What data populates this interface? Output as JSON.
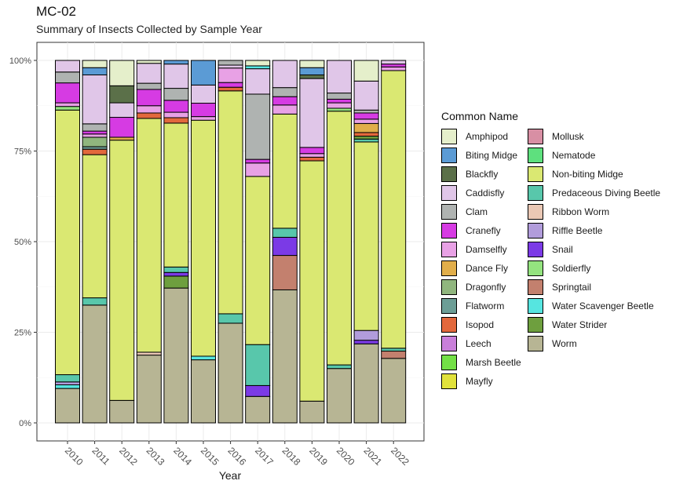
{
  "header": {
    "title": "MC-02",
    "subtitle": "Summary of Insects Collected by Sample Year"
  },
  "chart_data": {
    "type": "bar",
    "stacked": true,
    "normalized": true,
    "title": "MC-02",
    "subtitle": "Summary of Insects Collected by Sample Year",
    "xlabel": "Year",
    "ylabel": "",
    "ylim": [
      0,
      1
    ],
    "y_ticks": [
      "0%",
      "25%",
      "50%",
      "75%",
      "100%"
    ],
    "categories": [
      "2010",
      "2011",
      "2012",
      "2013",
      "2014",
      "2015",
      "2016",
      "2017",
      "2018",
      "2019",
      "2020",
      "2021",
      "2022"
    ],
    "legend_title": "Common Name",
    "legend_position": "right",
    "species": [
      {
        "name": "Amphipod",
        "color": "#E5EFCB"
      },
      {
        "name": "Biting Midge",
        "color": "#5B9BD5"
      },
      {
        "name": "Blackfly",
        "color": "#5B7049"
      },
      {
        "name": "Caddisfly",
        "color": "#E0C6E8"
      },
      {
        "name": "Clam",
        "color": "#AFB3B1"
      },
      {
        "name": "Cranefly",
        "color": "#D63BE3"
      },
      {
        "name": "Damselfly",
        "color": "#E8A1E5"
      },
      {
        "name": "Dance Fly",
        "color": "#E1AE4A"
      },
      {
        "name": "Dragonfly",
        "color": "#90B67E"
      },
      {
        "name": "Flatworm",
        "color": "#6C9E96"
      },
      {
        "name": "Isopod",
        "color": "#E2683C"
      },
      {
        "name": "Leech",
        "color": "#C97FDA"
      },
      {
        "name": "Marsh Beetle",
        "color": "#73E046"
      },
      {
        "name": "Mayfly",
        "color": "#E1E23B"
      },
      {
        "name": "Mollusk",
        "color": "#D88FA4"
      },
      {
        "name": "Nematode",
        "color": "#5EE07E"
      },
      {
        "name": "Non-biting Midge",
        "color": "#DAE872"
      },
      {
        "name": "Predaceous Diving Beetle",
        "color": "#58C7AB"
      },
      {
        "name": "Ribbon Worm",
        "color": "#EAC8B5"
      },
      {
        "name": "Riffle Beetle",
        "color": "#B19CDB"
      },
      {
        "name": "Snail",
        "color": "#7B3AE6"
      },
      {
        "name": "Soldierfly",
        "color": "#94E37F"
      },
      {
        "name": "Springtail",
        "color": "#C3806E"
      },
      {
        "name": "Water Scavenger Beetle",
        "color": "#56E5E0"
      },
      {
        "name": "Water Strider",
        "color": "#6E9F3E"
      },
      {
        "name": "Worm",
        "color": "#B7B594"
      }
    ],
    "data": {
      "2010": [
        [
          "Worm",
          0.095
        ],
        [
          "Water Scavenger Beetle",
          0.01
        ],
        [
          "Riffle Beetle",
          0.008
        ],
        [
          "Predaceous Diving Beetle",
          0.02
        ],
        [
          "Non-biting Midge",
          0.73
        ],
        [
          "Soldierfly",
          0.01
        ],
        [
          "Damselfly",
          0.01
        ],
        [
          "Cranefly",
          0.055
        ],
        [
          "Clam",
          0.03
        ],
        [
          "Caddisfly",
          0.032
        ]
      ],
      "2011": [
        [
          "Worm",
          0.325
        ],
        [
          "Predaceous Diving Beetle",
          0.02
        ],
        [
          "Non-biting Midge",
          0.395
        ],
        [
          "Isopod",
          0.015
        ],
        [
          "Flatworm",
          0.007
        ],
        [
          "Dragonfly",
          0.026
        ],
        [
          "Damselfly",
          0.009
        ],
        [
          "Cranefly",
          0.008
        ],
        [
          "Clam",
          0.02
        ],
        [
          "Caddisfly",
          0.135
        ],
        [
          "Biting Midge",
          0.02
        ],
        [
          "Amphipod",
          0.02
        ]
      ],
      "2012": [
        [
          "Worm",
          0.062
        ],
        [
          "Non-biting Midge",
          0.718
        ],
        [
          "Dance Fly",
          0.008
        ],
        [
          "Cranefly",
          0.055
        ],
        [
          "Caddisfly",
          0.04
        ],
        [
          "Blackfly",
          0.047
        ],
        [
          "Amphipod",
          0.07
        ]
      ],
      "2013": [
        [
          "Worm",
          0.187
        ],
        [
          "Ribbon Worm",
          0.008
        ],
        [
          "Non-biting Midge",
          0.645
        ],
        [
          "Isopod",
          0.015
        ],
        [
          "Damselfly",
          0.02
        ],
        [
          "Cranefly",
          0.045
        ],
        [
          "Clam",
          0.017
        ],
        [
          "Caddisfly",
          0.055
        ],
        [
          "Amphipod",
          0.008
        ]
      ],
      "2014": [
        [
          "Worm",
          0.372
        ],
        [
          "Water Strider",
          0.033
        ],
        [
          "Snail",
          0.01
        ],
        [
          "Predaceous Diving Beetle",
          0.015
        ],
        [
          "Non-biting Midge",
          0.397
        ],
        [
          "Isopod",
          0.015
        ],
        [
          "Damselfly",
          0.015
        ],
        [
          "Cranefly",
          0.033
        ],
        [
          "Clam",
          0.033
        ],
        [
          "Caddisfly",
          0.067
        ],
        [
          "Biting Midge",
          0.01
        ]
      ],
      "2015": [
        [
          "Worm",
          0.174
        ],
        [
          "Water Scavenger Beetle",
          0.01
        ],
        [
          "Non-biting Midge",
          0.651
        ],
        [
          "Damselfly",
          0.01
        ],
        [
          "Cranefly",
          0.037
        ],
        [
          "Caddisfly",
          0.05
        ],
        [
          "Biting Midge",
          0.068
        ]
      ],
      "2016": [
        [
          "Worm",
          0.275
        ],
        [
          "Predaceous Diving Beetle",
          0.026
        ],
        [
          "Non-biting Midge",
          0.615
        ],
        [
          "Isopod",
          0.01
        ],
        [
          "Cranefly",
          0.013
        ],
        [
          "Damselfly",
          0.04
        ],
        [
          "Caddisfly",
          0.008
        ],
        [
          "Clam",
          0.013
        ]
      ],
      "2017": [
        [
          "Worm",
          0.073
        ],
        [
          "Snail",
          0.03
        ],
        [
          "Predaceous Diving Beetle",
          0.113
        ],
        [
          "Non-biting Midge",
          0.464
        ],
        [
          "Damselfly",
          0.037
        ],
        [
          "Cranefly",
          0.01
        ],
        [
          "Clam",
          0.18
        ],
        [
          "Caddisfly",
          0.07
        ],
        [
          "Water Scavenger Beetle",
          0.008
        ],
        [
          "Amphipod",
          0.015
        ]
      ],
      "2018": [
        [
          "Worm",
          0.367
        ],
        [
          "Springtail",
          0.095
        ],
        [
          "Snail",
          0.05
        ],
        [
          "Predaceous Diving Beetle",
          0.025
        ],
        [
          "Non-biting Midge",
          0.315
        ],
        [
          "Damselfly",
          0.025
        ],
        [
          "Cranefly",
          0.023
        ],
        [
          "Clam",
          0.025
        ],
        [
          "Caddisfly",
          0.075
        ]
      ],
      "2019": [
        [
          "Worm",
          0.06
        ],
        [
          "Non-biting Midge",
          0.663
        ],
        [
          "Isopod",
          0.01
        ],
        [
          "Damselfly",
          0.01
        ],
        [
          "Cranefly",
          0.017
        ],
        [
          "Caddisfly",
          0.19
        ],
        [
          "Blackfly",
          0.01
        ],
        [
          "Biting Midge",
          0.02
        ],
        [
          "Amphipod",
          0.02
        ]
      ],
      "2020": [
        [
          "Worm",
          0.15
        ],
        [
          "Predaceous Diving Beetle",
          0.01
        ],
        [
          "Non-biting Midge",
          0.7
        ],
        [
          "Soldierfly",
          0.008
        ],
        [
          "Damselfly",
          0.015
        ],
        [
          "Cranefly",
          0.01
        ],
        [
          "Clam",
          0.017
        ],
        [
          "Caddisfly",
          0.09
        ]
      ],
      "2021": [
        [
          "Worm",
          0.218
        ],
        [
          "Snail",
          0.01
        ],
        [
          "Riffle Beetle",
          0.027
        ],
        [
          "Non-biting Midge",
          0.52
        ],
        [
          "Predaceous Diving Beetle",
          0.008
        ],
        [
          "Water Strider",
          0.008
        ],
        [
          "Isopod",
          0.01
        ],
        [
          "Dance Fly",
          0.025
        ],
        [
          "Damselfly",
          0.012
        ],
        [
          "Cranefly",
          0.017
        ],
        [
          "Clam",
          0.008
        ],
        [
          "Caddisfly",
          0.08
        ],
        [
          "Amphipod",
          0.057
        ]
      ],
      "2022": [
        [
          "Worm",
          0.178
        ],
        [
          "Springtail",
          0.02
        ],
        [
          "Predaceous Diving Beetle",
          0.008
        ],
        [
          "Non-biting Midge",
          0.766
        ],
        [
          "Damselfly",
          0.01
        ],
        [
          "Cranefly",
          0.008
        ],
        [
          "Caddisfly",
          0.01
        ]
      ]
    }
  }
}
